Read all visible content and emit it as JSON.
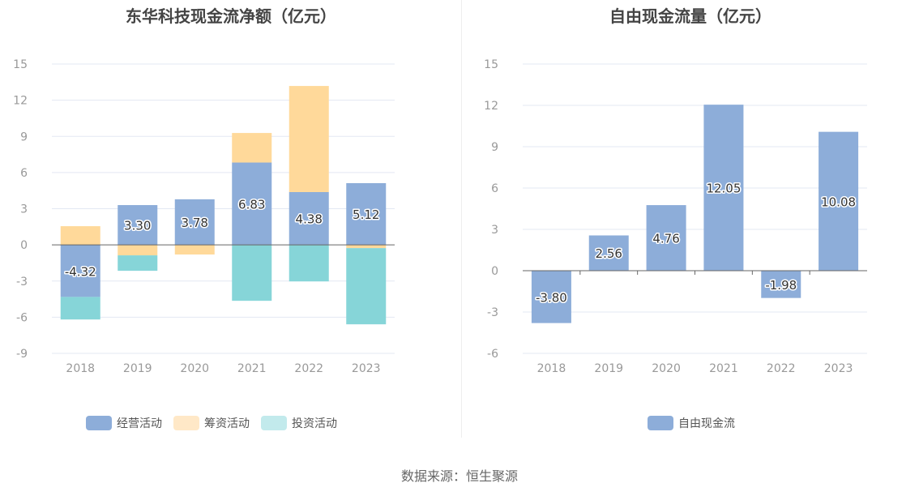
{
  "source": "数据来源：恒生聚源",
  "colors": {
    "operating": "#8dadd9",
    "financing": "#ffd99a",
    "investing": "#86d5d8",
    "free_cash_flow": "#8dadd9",
    "legend_financing": "#ffe8c7",
    "legend_investing": "#c2eaec"
  },
  "chart_data": [
    {
      "type": "bar",
      "stacked": true,
      "title": "东华科技现金流净额（亿元）",
      "categories": [
        "2018",
        "2019",
        "2020",
        "2021",
        "2022",
        "2023"
      ],
      "series": [
        {
          "name": "经营活动",
          "values": [
            -4.32,
            3.3,
            3.78,
            6.83,
            4.38,
            5.12
          ],
          "labels": [
            "-4.32",
            "3.30",
            "3.78",
            "6.83",
            "4.38",
            "5.12"
          ]
        },
        {
          "name": "筹资活动",
          "values": [
            1.55,
            -0.87,
            -0.8,
            2.45,
            8.8,
            -0.27
          ]
        },
        {
          "name": "投资活动",
          "values": [
            -1.87,
            -1.28,
            0,
            -4.64,
            -3.03,
            -6.32
          ]
        }
      ],
      "ylim": [
        -9,
        15
      ],
      "yticks": [
        "15",
        "12",
        "9",
        "6",
        "3",
        "0",
        "-3",
        "-6",
        "-9"
      ],
      "ytick_values": [
        15,
        12,
        9,
        6,
        3,
        0,
        -3,
        -6,
        -9
      ],
      "grid": true,
      "legend": "bottom"
    },
    {
      "type": "bar",
      "title": "自由现金流量（亿元）",
      "categories": [
        "2018",
        "2019",
        "2020",
        "2021",
        "2022",
        "2023"
      ],
      "series": [
        {
          "name": "自由现金流",
          "values": [
            -3.8,
            2.56,
            4.76,
            12.05,
            -1.98,
            10.08
          ],
          "labels": [
            "-3.80",
            "2.56",
            "4.76",
            "12.05",
            "-1.98",
            "10.08"
          ]
        }
      ],
      "ylim": [
        -6,
        15
      ],
      "yticks": [
        "15",
        "12",
        "9",
        "6",
        "3",
        "0",
        "-3",
        "-6"
      ],
      "ytick_values": [
        15,
        12,
        9,
        6,
        3,
        0,
        -3,
        -6
      ],
      "grid": true,
      "legend": "bottom"
    }
  ]
}
